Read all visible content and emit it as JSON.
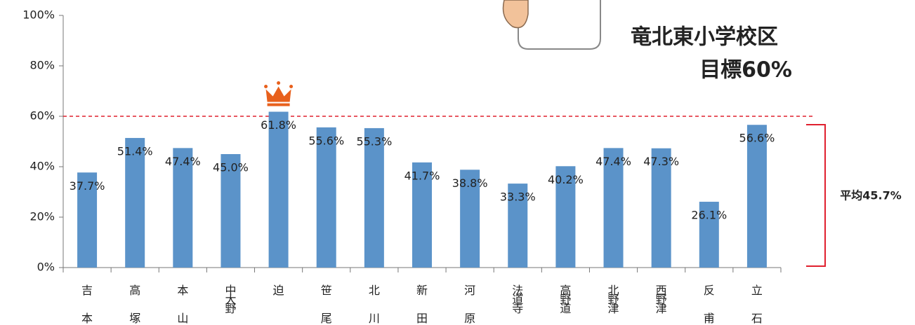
{
  "chart_data": {
    "type": "bar",
    "categories": [
      "吉本",
      "高塚",
      "本山",
      "中大野",
      "迫",
      "笹尾",
      "北川",
      "新田",
      "河原",
      "法道寺",
      "高野道",
      "北野津",
      "西野津",
      "反甫",
      "立石"
    ],
    "values": [
      37.7,
      51.4,
      47.4,
      45.0,
      61.8,
      55.6,
      55.3,
      41.7,
      38.8,
      33.3,
      40.2,
      47.4,
      47.3,
      26.1,
      56.6
    ],
    "value_labels": [
      "37.7%",
      "51.4%",
      "47.4%",
      "45.0%",
      "61.8%",
      "55.6%",
      "55.3%",
      "41.7%",
      "38.8%",
      "33.3%",
      "40.2%",
      "47.4%",
      "47.3%",
      "26.1%",
      "56.6%"
    ],
    "color": "#5b93c9",
    "ylim": [
      0,
      100
    ],
    "yticks": [
      {
        "value": 0,
        "label": "0%"
      },
      {
        "value": 20,
        "label": "20%"
      },
      {
        "value": 40,
        "label": "40%"
      },
      {
        "value": 60,
        "label": "60%"
      },
      {
        "value": 80,
        "label": "80%"
      },
      {
        "value": 100,
        "label": "100%"
      }
    ],
    "target_line": 60,
    "target_color": "#e0202e",
    "school_label": "竜北東小学校区",
    "target_label": "目標60%",
    "average_label": "平均45.7%"
  }
}
